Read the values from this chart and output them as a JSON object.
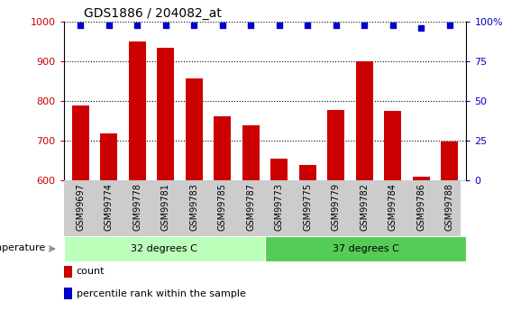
{
  "title": "GDS1886 / 204082_at",
  "categories": [
    "GSM99697",
    "GSM99774",
    "GSM99778",
    "GSM99781",
    "GSM99783",
    "GSM99785",
    "GSM99787",
    "GSM99773",
    "GSM99775",
    "GSM99779",
    "GSM99782",
    "GSM99784",
    "GSM99786",
    "GSM99788"
  ],
  "bar_values": [
    790,
    718,
    950,
    935,
    858,
    762,
    738,
    655,
    638,
    778,
    900,
    776,
    610,
    698
  ],
  "bar_color": "#cc0000",
  "percentile_values": [
    98,
    98,
    98,
    98,
    98,
    98,
    98,
    98,
    98,
    98,
    98,
    98,
    96,
    98
  ],
  "percentile_color": "#0000cc",
  "ylim_left": [
    600,
    1000
  ],
  "ylim_right": [
    0,
    100
  ],
  "yticks_left": [
    600,
    700,
    800,
    900,
    1000
  ],
  "yticks_right": [
    0,
    25,
    50,
    75,
    100
  ],
  "group1_label": "32 degrees C",
  "group2_label": "37 degrees C",
  "group1_count": 7,
  "group2_count": 7,
  "group1_color": "#bbffbb",
  "group2_color": "#55cc55",
  "temp_label": "temperature",
  "legend_count_label": "count",
  "legend_percentile_label": "percentile rank within the sample",
  "bar_width": 0.6,
  "background_color": "#ffffff",
  "tick_label_color_left": "#cc0000",
  "tick_label_color_right": "#0000cc",
  "dotted_grid_color": "#000000",
  "xlabel_area_color": "#cccccc",
  "right_ytick_labels": [
    "0",
    "25",
    "50",
    "75",
    "100%"
  ]
}
